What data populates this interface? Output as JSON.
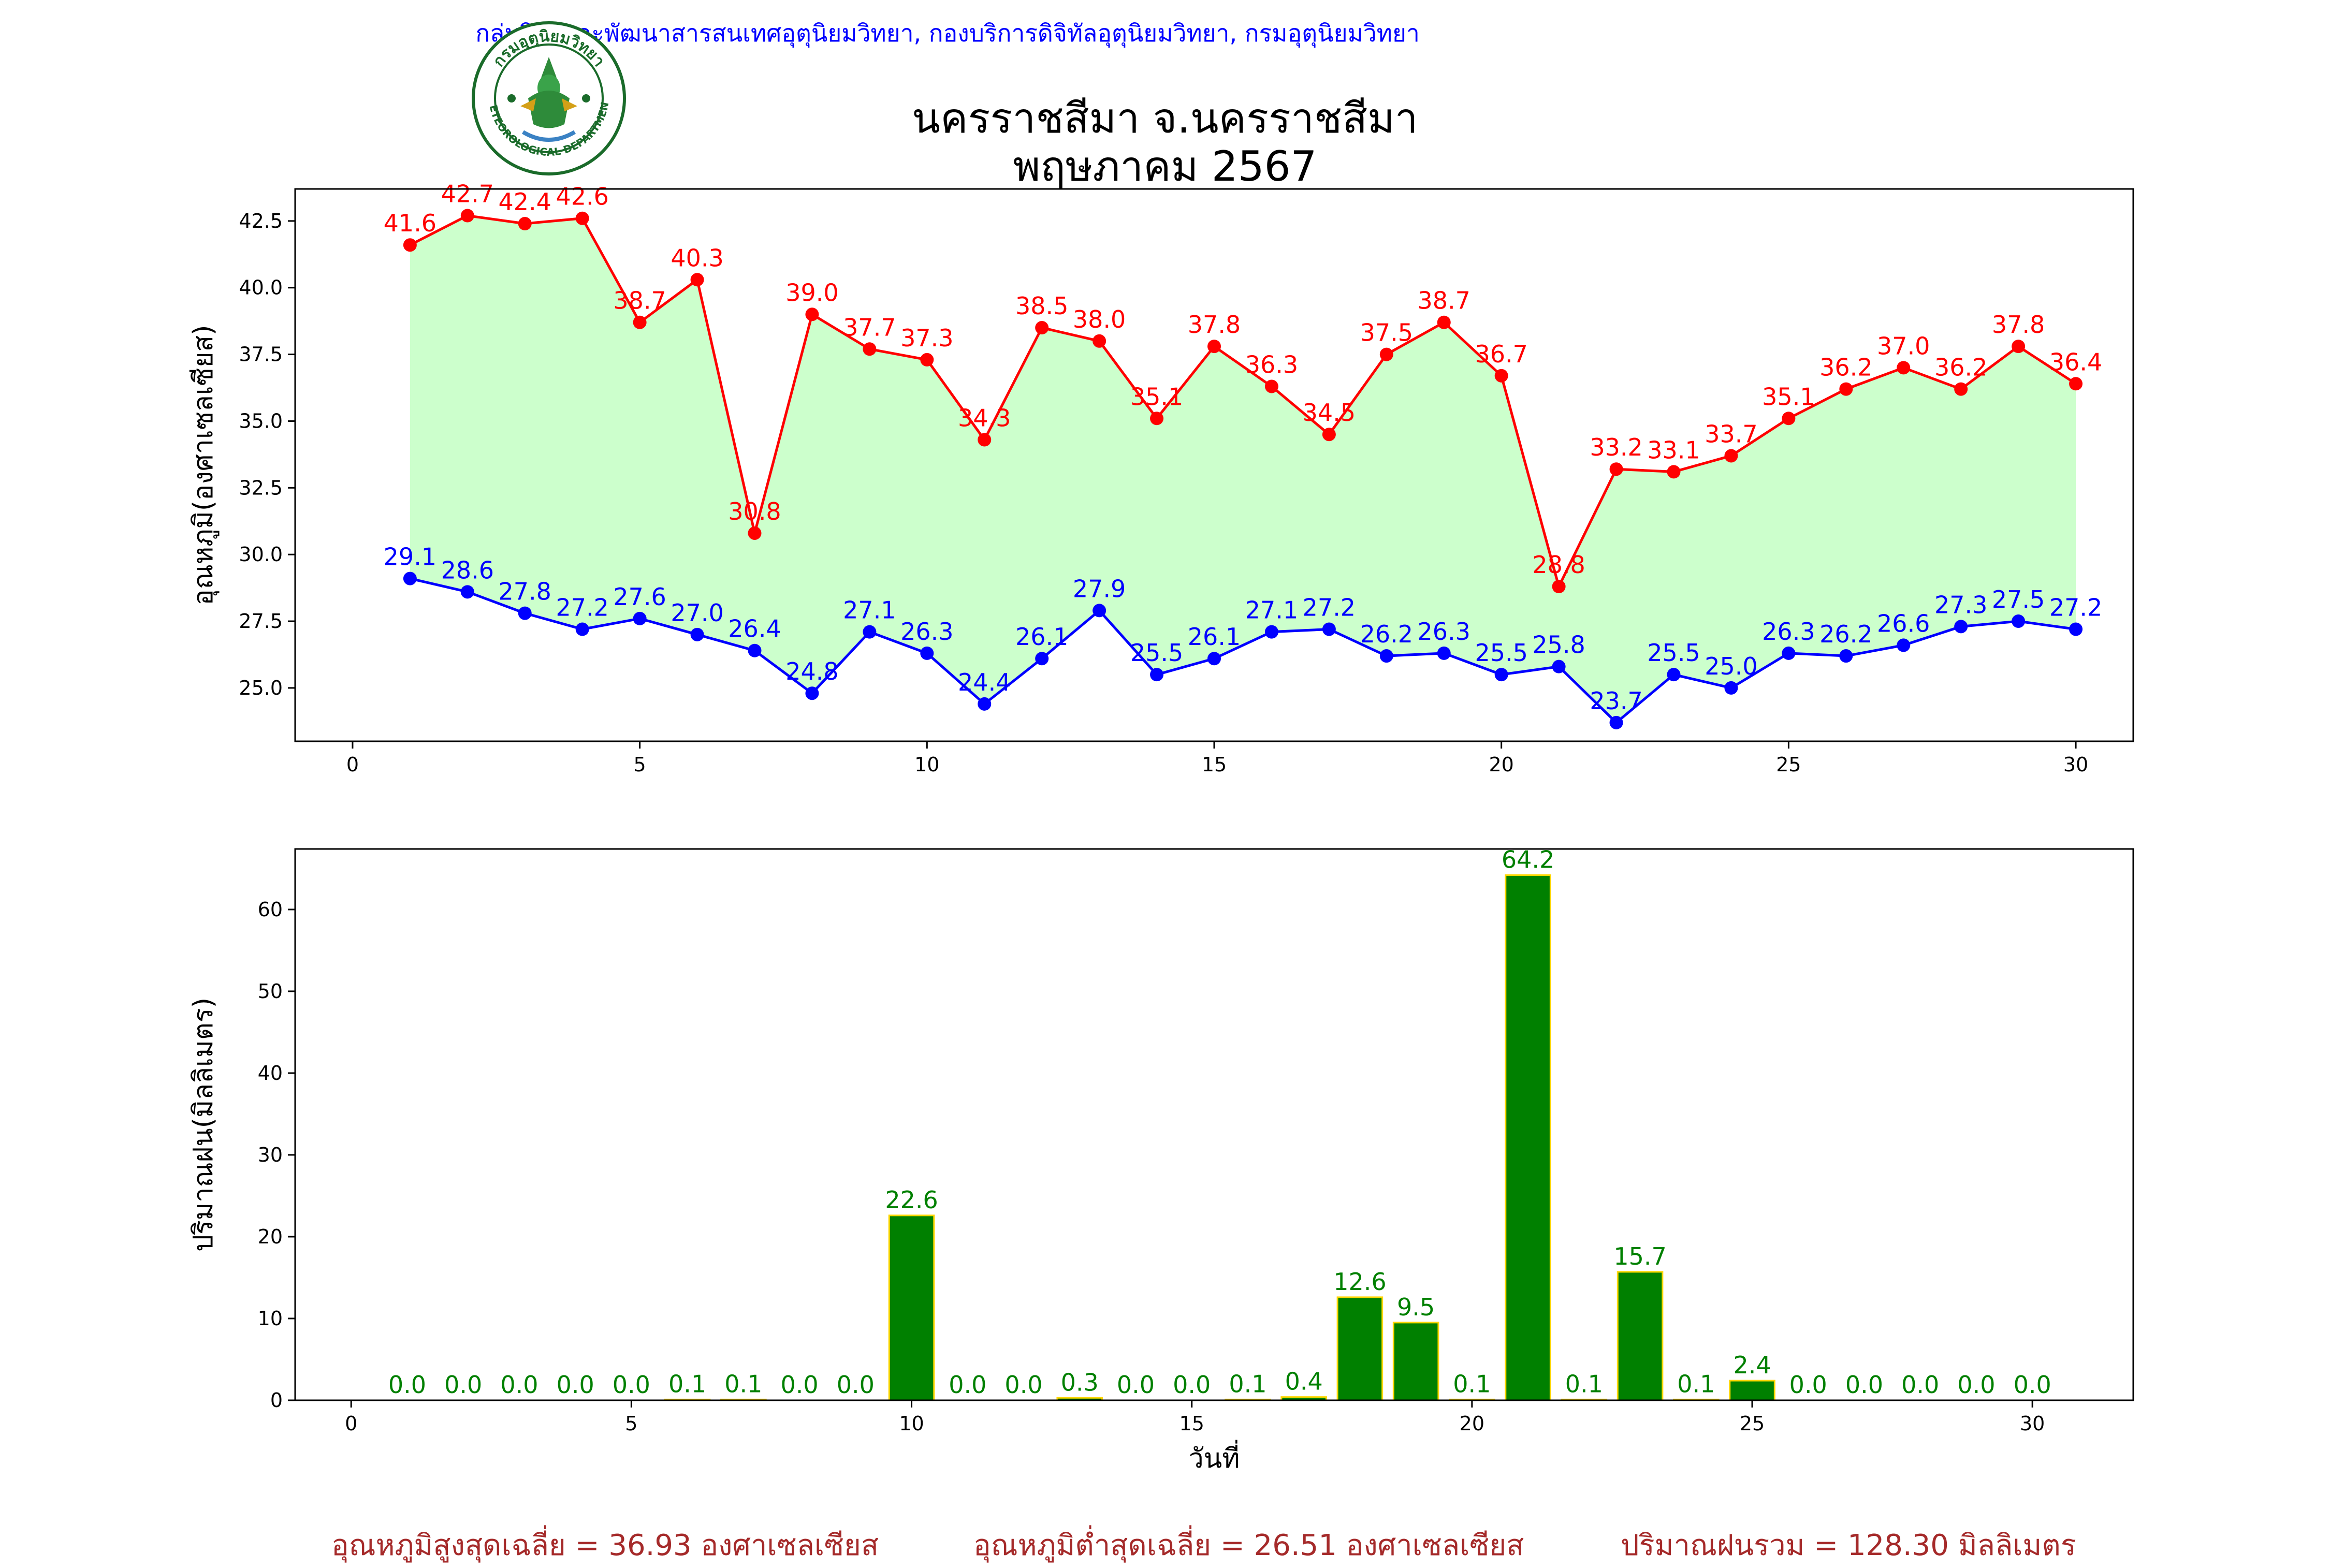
{
  "header": {
    "credit": "กลุ่มวิจัยและพัฒนาสารสนเทศอุตุนิยมวิทยา, กองบริการดิจิทัลอุตุนิยมวิทยา, กรมอุตุนิยมวิทยา",
    "title_line1": "นครราชสีมา จ.นครราชสีมา",
    "title_line2": "พฤษภาคม 2567",
    "logo_text_top": "กรมอุตุนิยมวิทยา",
    "logo_text_bottom": "METEOROLOGICAL DEPARTMENT"
  },
  "footer": {
    "avg_max": "อุณหภูมิสูงสุดเฉลี่ย = 36.93 องศาเซลเซียส",
    "avg_min": "อุณหภูมิต่ำสุดเฉลี่ย = 26.51 องศาเซลเซียส",
    "total_rain": "ปริมาณฝนรวม = 128.30 มิลลิเมตร"
  },
  "colors": {
    "max_temp": "#ff0000",
    "min_temp": "#0000ff",
    "fill": "#ccffcc",
    "rain_bar": "#008000",
    "rain_edge": "#ffd700",
    "rain_label": "#008000"
  },
  "chart_data": [
    {
      "type": "line",
      "ylabel": "อุณหภูมิ(องศาเซลเซียส)",
      "xlabel": "",
      "xlim": [
        -1,
        31
      ],
      "ylim": [
        23.0,
        43.7
      ],
      "xticks": [
        0,
        5,
        10,
        15,
        20,
        25,
        30
      ],
      "yticks": [
        25.0,
        27.5,
        30.0,
        32.5,
        35.0,
        37.5,
        40.0,
        42.5
      ],
      "x": [
        1,
        2,
        3,
        4,
        5,
        6,
        7,
        8,
        9,
        10,
        11,
        12,
        13,
        14,
        15,
        16,
        17,
        18,
        19,
        20,
        21,
        22,
        23,
        24,
        25,
        26,
        27,
        28,
        29,
        30
      ],
      "series": [
        {
          "key": "max",
          "values": [
            41.6,
            42.7,
            42.4,
            42.6,
            38.7,
            40.3,
            30.8,
            39.0,
            37.7,
            37.3,
            34.3,
            38.5,
            38.0,
            35.1,
            37.8,
            36.3,
            34.5,
            37.5,
            38.7,
            36.7,
            28.8,
            33.2,
            33.1,
            33.7,
            35.1,
            36.2,
            37.0,
            36.2,
            37.8,
            36.4
          ]
        },
        {
          "key": "min",
          "values": [
            29.1,
            28.6,
            27.8,
            27.2,
            27.6,
            27.0,
            26.4,
            24.8,
            27.1,
            26.3,
            24.4,
            26.1,
            27.9,
            25.5,
            26.1,
            27.1,
            27.2,
            26.2,
            26.3,
            25.5,
            25.8,
            23.7,
            25.5,
            25.0,
            26.3,
            26.2,
            26.6,
            27.3,
            27.5,
            27.2
          ]
        }
      ],
      "grid": false
    },
    {
      "type": "bar",
      "ylabel": "ปริมาณฝน(มิลลิเมตร)",
      "xlabel": "วันที่",
      "xlim": [
        -1,
        31.8
      ],
      "ylim": [
        0,
        67.4
      ],
      "xticks": [
        0,
        5,
        10,
        15,
        20,
        25,
        30
      ],
      "yticks": [
        0,
        10,
        20,
        30,
        40,
        50,
        60
      ],
      "x": [
        1,
        2,
        3,
        4,
        5,
        6,
        7,
        8,
        9,
        10,
        11,
        12,
        13,
        14,
        15,
        16,
        17,
        18,
        19,
        20,
        21,
        22,
        23,
        24,
        25,
        26,
        27,
        28,
        29,
        30
      ],
      "values": [
        0.0,
        0.0,
        0.0,
        0.0,
        0.0,
        0.1,
        0.1,
        0.0,
        0.0,
        22.6,
        0.0,
        0.0,
        0.3,
        0.0,
        0.0,
        0.1,
        0.4,
        12.6,
        9.5,
        0.1,
        64.2,
        0.1,
        15.7,
        0.1,
        2.4,
        0.0,
        0.0,
        0.0,
        0.0,
        0.0
      ],
      "grid": false
    }
  ]
}
